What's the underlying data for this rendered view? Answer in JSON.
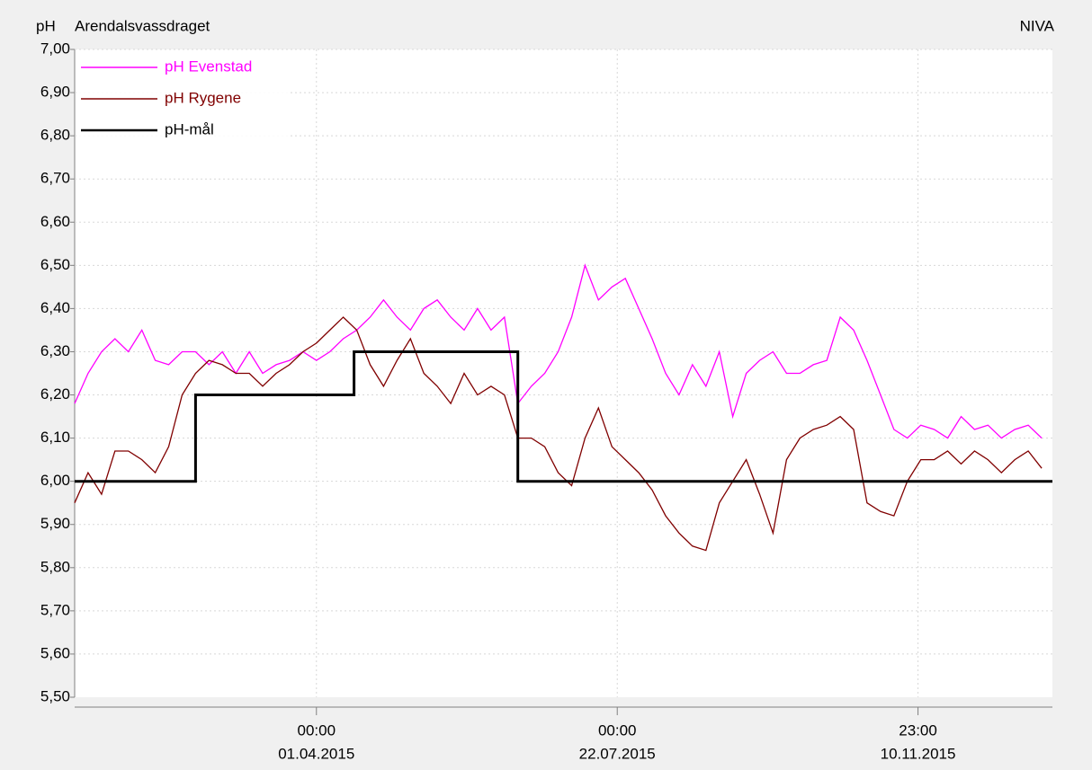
{
  "chart_data": {
    "type": "line",
    "title": "Arendalsvassdraget",
    "ylabel": "pH",
    "source": "NIVA",
    "xlim": [
      "2015-01-01T00:00",
      "2015-12-31T00:00"
    ],
    "xticks": [
      {
        "value": "2015-04-01T00:00",
        "label": [
          "00:00",
          "01.04.2015"
        ]
      },
      {
        "value": "2015-07-22T00:00",
        "label": [
          "00:00",
          "22.07.2015"
        ]
      },
      {
        "value": "2015-11-10T23:00",
        "label": [
          "23:00",
          "10.11.2015"
        ]
      }
    ],
    "ylim": [
      5.5,
      7.0
    ],
    "yticks": [
      {
        "value": 5.5,
        "label": "5,50"
      },
      {
        "value": 5.6,
        "label": "5,60"
      },
      {
        "value": 5.7,
        "label": "5,70"
      },
      {
        "value": 5.8,
        "label": "5,80"
      },
      {
        "value": 5.9,
        "label": "5,90"
      },
      {
        "value": 6.0,
        "label": "6,00"
      },
      {
        "value": 6.1,
        "label": "6,10"
      },
      {
        "value": 6.2,
        "label": "6,20"
      },
      {
        "value": 6.3,
        "label": "6,30"
      },
      {
        "value": 6.4,
        "label": "6,40"
      },
      {
        "value": 6.5,
        "label": "6,50"
      },
      {
        "value": 6.6,
        "label": "6,60"
      },
      {
        "value": 6.7,
        "label": "6,70"
      },
      {
        "value": 6.8,
        "label": "6,80"
      },
      {
        "value": 6.9,
        "label": "6,90"
      },
      {
        "value": 7.0,
        "label": "7,00"
      }
    ],
    "grid": true,
    "legend": "top-left",
    "series": [
      {
        "name": "pH Evenstad",
        "color": "#ff00ff",
        "x": [
          "2015-01-01",
          "2015-01-06",
          "2015-01-11",
          "2015-01-16",
          "2015-01-21",
          "2015-01-26",
          "2015-01-31",
          "2015-02-05",
          "2015-02-10",
          "2015-02-15",
          "2015-02-20",
          "2015-02-25",
          "2015-03-02",
          "2015-03-07",
          "2015-03-12",
          "2015-03-17",
          "2015-03-22",
          "2015-03-27",
          "2015-04-01",
          "2015-04-06",
          "2015-04-11",
          "2015-04-16",
          "2015-04-21",
          "2015-04-26",
          "2015-05-01",
          "2015-05-06",
          "2015-05-11",
          "2015-05-16",
          "2015-05-21",
          "2015-05-26",
          "2015-05-31",
          "2015-06-05",
          "2015-06-10",
          "2015-06-15",
          "2015-06-20",
          "2015-06-25",
          "2015-06-30",
          "2015-07-05",
          "2015-07-10",
          "2015-07-15",
          "2015-07-20",
          "2015-07-25",
          "2015-07-30",
          "2015-08-04",
          "2015-08-09",
          "2015-08-14",
          "2015-08-19",
          "2015-08-24",
          "2015-08-29",
          "2015-09-03",
          "2015-09-08",
          "2015-09-13",
          "2015-09-18",
          "2015-09-23",
          "2015-09-28",
          "2015-10-03",
          "2015-10-08",
          "2015-10-13",
          "2015-10-18",
          "2015-10-23",
          "2015-10-28",
          "2015-11-02",
          "2015-11-07",
          "2015-11-12",
          "2015-11-17",
          "2015-11-22",
          "2015-11-27",
          "2015-12-02",
          "2015-12-07",
          "2015-12-12",
          "2015-12-17",
          "2015-12-22",
          "2015-12-27"
        ],
        "values": [
          6.18,
          6.25,
          6.3,
          6.33,
          6.3,
          6.35,
          6.28,
          6.27,
          6.3,
          6.3,
          6.27,
          6.3,
          6.25,
          6.3,
          6.25,
          6.27,
          6.28,
          6.3,
          6.28,
          6.3,
          6.33,
          6.35,
          6.38,
          6.42,
          6.38,
          6.35,
          6.4,
          6.42,
          6.38,
          6.35,
          6.4,
          6.35,
          6.38,
          6.18,
          6.22,
          6.25,
          6.3,
          6.38,
          6.5,
          6.42,
          6.45,
          6.47,
          6.4,
          6.33,
          6.25,
          6.2,
          6.27,
          6.22,
          6.3,
          6.15,
          6.25,
          6.28,
          6.3,
          6.25,
          6.25,
          6.27,
          6.28,
          6.38,
          6.35,
          6.28,
          6.2,
          6.12,
          6.1,
          6.13,
          6.12,
          6.1,
          6.15,
          6.12,
          6.13,
          6.1,
          6.12,
          6.13,
          6.1
        ]
      },
      {
        "name": "pH Rygene",
        "color": "#800000",
        "x": [
          "2015-01-01",
          "2015-01-06",
          "2015-01-11",
          "2015-01-16",
          "2015-01-21",
          "2015-01-26",
          "2015-01-31",
          "2015-02-05",
          "2015-02-10",
          "2015-02-15",
          "2015-02-20",
          "2015-02-25",
          "2015-03-02",
          "2015-03-07",
          "2015-03-12",
          "2015-03-17",
          "2015-03-22",
          "2015-03-27",
          "2015-04-01",
          "2015-04-06",
          "2015-04-11",
          "2015-04-16",
          "2015-04-21",
          "2015-04-26",
          "2015-05-01",
          "2015-05-06",
          "2015-05-11",
          "2015-05-16",
          "2015-05-21",
          "2015-05-26",
          "2015-05-31",
          "2015-06-05",
          "2015-06-10",
          "2015-06-15",
          "2015-06-20",
          "2015-06-25",
          "2015-06-30",
          "2015-07-05",
          "2015-07-10",
          "2015-07-15",
          "2015-07-20",
          "2015-07-25",
          "2015-07-30",
          "2015-08-04",
          "2015-08-09",
          "2015-08-14",
          "2015-08-19",
          "2015-08-24",
          "2015-08-29",
          "2015-09-03",
          "2015-09-08",
          "2015-09-13",
          "2015-09-18",
          "2015-09-23",
          "2015-09-28",
          "2015-10-03",
          "2015-10-08",
          "2015-10-13",
          "2015-10-18",
          "2015-10-23",
          "2015-10-28",
          "2015-11-02",
          "2015-11-07",
          "2015-11-12",
          "2015-11-17",
          "2015-11-22",
          "2015-11-27",
          "2015-12-02",
          "2015-12-07",
          "2015-12-12",
          "2015-12-17",
          "2015-12-22",
          "2015-12-27"
        ],
        "values": [
          5.95,
          6.02,
          5.97,
          6.07,
          6.07,
          6.05,
          6.02,
          6.08,
          6.2,
          6.25,
          6.28,
          6.27,
          6.25,
          6.25,
          6.22,
          6.25,
          6.27,
          6.3,
          6.32,
          6.35,
          6.38,
          6.35,
          6.27,
          6.22,
          6.28,
          6.33,
          6.25,
          6.22,
          6.18,
          6.25,
          6.2,
          6.22,
          6.2,
          6.1,
          6.1,
          6.08,
          6.02,
          5.99,
          6.1,
          6.17,
          6.08,
          6.05,
          6.02,
          5.98,
          5.92,
          5.88,
          5.85,
          5.84,
          5.95,
          6.0,
          6.05,
          5.97,
          5.88,
          6.05,
          6.1,
          6.12,
          6.13,
          6.15,
          6.12,
          5.95,
          5.93,
          5.92,
          6.0,
          6.05,
          6.05,
          6.07,
          6.04,
          6.07,
          6.05,
          6.02,
          6.05,
          6.07,
          6.03
        ]
      },
      {
        "name": "pH-mål",
        "color": "#000000",
        "x": [
          "2015-01-01",
          "2015-02-15",
          "2015-02-15",
          "2015-04-15",
          "2015-04-15",
          "2015-06-15",
          "2015-06-15",
          "2015-12-31"
        ],
        "values": [
          6.0,
          6.0,
          6.2,
          6.2,
          6.3,
          6.3,
          6.0,
          6.0
        ]
      }
    ]
  }
}
